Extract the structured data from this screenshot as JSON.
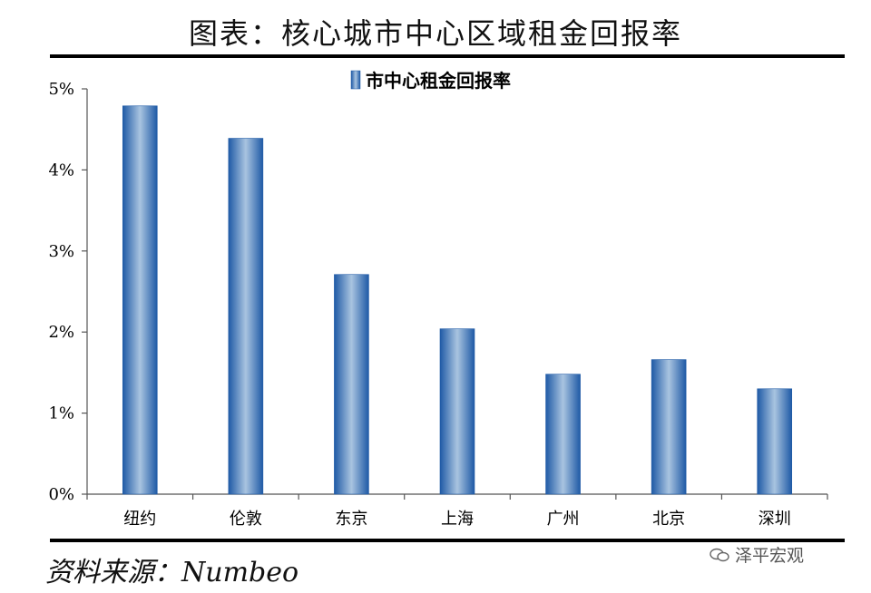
{
  "title": "图表：核心城市中心区域租金回报率",
  "source": "资料来源：Numbeo",
  "watermark": "泽平宏观",
  "chart_data": {
    "type": "bar",
    "categories": [
      "纽约",
      "伦敦",
      "东京",
      "上海",
      "广州",
      "北京",
      "深圳"
    ],
    "series": [
      {
        "name": "市中心租金回报率",
        "values": [
          4.79,
          4.39,
          2.71,
          2.04,
          1.48,
          1.66,
          1.3
        ]
      }
    ],
    "ylim": [
      0,
      5
    ],
    "yticks": [
      "0%",
      "1%",
      "2%",
      "3%",
      "4%",
      "5%"
    ],
    "grid": false,
    "legend": "top-center",
    "bar_color": "#2f6db8"
  }
}
